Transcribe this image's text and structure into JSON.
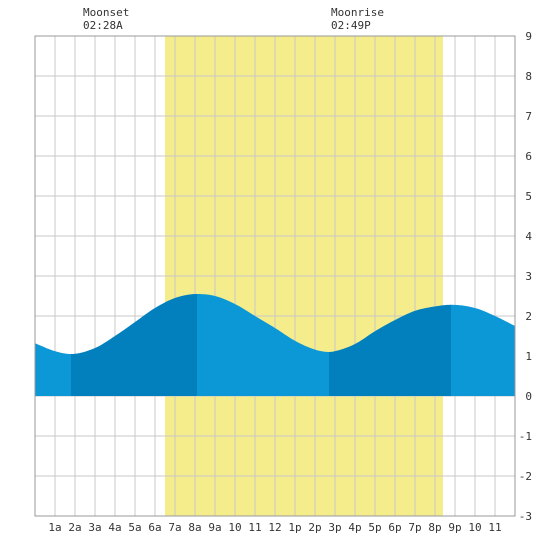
{
  "chart_data": {
    "type": "area",
    "title": "",
    "xlabel": "",
    "ylabel": "",
    "xlim": [
      0,
      24
    ],
    "ylim": [
      -3,
      9
    ],
    "y_ticks": [
      -3,
      -2,
      -1,
      0,
      1,
      2,
      3,
      4,
      5,
      6,
      7,
      8,
      9
    ],
    "x_tick_labels": [
      "1a",
      "2a",
      "3a",
      "4a",
      "5a",
      "6a",
      "7a",
      "8a",
      "9a",
      "10",
      "11",
      "12",
      "1p",
      "2p",
      "3p",
      "4p",
      "5p",
      "6p",
      "7p",
      "8p",
      "9p",
      "10",
      "11"
    ],
    "grid": true,
    "daylight": {
      "start_hour": 6.5,
      "end_hour": 20.4
    },
    "tide_extremes": [
      {
        "hour": 1.8,
        "height": 1.05,
        "kind": "low"
      },
      {
        "hour": 8.1,
        "height": 2.55,
        "kind": "high"
      },
      {
        "hour": 14.7,
        "height": 1.1,
        "kind": "low"
      },
      {
        "hour": 20.8,
        "height": 2.28,
        "kind": "high"
      }
    ],
    "series": [
      {
        "values_hours": [
          0,
          1,
          1.8,
          3,
          4,
          5,
          6,
          7,
          8.1,
          9,
          10,
          11,
          12,
          13,
          14,
          14.7,
          15,
          16,
          17,
          18,
          19,
          20,
          20.8,
          22,
          23,
          24
        ],
        "values_height": [
          1.32,
          1.12,
          1.05,
          1.2,
          1.5,
          1.85,
          2.2,
          2.45,
          2.55,
          2.5,
          2.3,
          2.0,
          1.7,
          1.38,
          1.16,
          1.1,
          1.12,
          1.3,
          1.62,
          1.9,
          2.13,
          2.24,
          2.28,
          2.2,
          2.0,
          1.75
        ]
      }
    ],
    "colors": {
      "daylight": "#f5ec8c",
      "tide_light": "#0c97d6",
      "tide_dark": "#0280bd",
      "grid": "#c8c8c8",
      "frame": "#999999"
    }
  },
  "moon": {
    "moonset_label": "Moonset",
    "moonset_time": "02:28A",
    "moonrise_label": "Moonrise",
    "moonrise_time": "02:49P"
  }
}
